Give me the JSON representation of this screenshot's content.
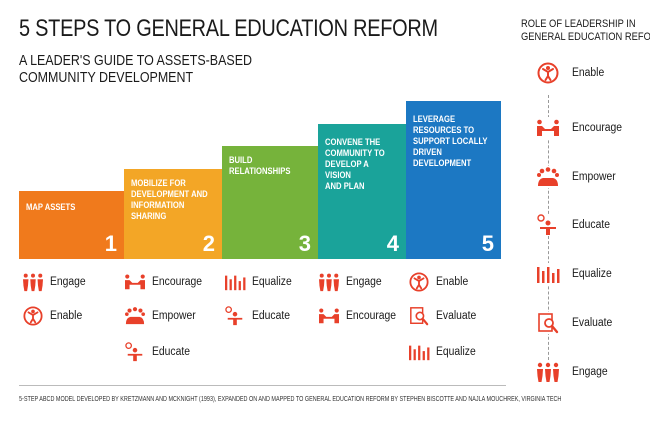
{
  "title": "5 STEPS TO GENERAL EDUCATION REFORM",
  "subtitle_line1": "A LEADER'S GUIDE TO ASSETS-BASED",
  "subtitle_line2": "COMMUNITY DEVELOPMENT",
  "steps": [
    {
      "label": "MAP ASSETS",
      "number": "1",
      "color": "#f07a1c"
    },
    {
      "label": "MOBILIZE FOR\nDEVELOPMENT AND\nINFORMATION SHARING",
      "number": "2",
      "color": "#f3a626"
    },
    {
      "label": "BUILD\nRELATIONSHIPS",
      "number": "3",
      "color": "#76b33b"
    },
    {
      "label": "CONVENE THE\nCOMMUNITY TO\nDEVELOP A VISION\nAND PLAN",
      "number": "4",
      "color": "#1aa39a"
    },
    {
      "label": "LEVERAGE\nRESOURCES TO\nSUPPORT LOCALLY\nDRIVEN DEVELOPMENT",
      "number": "5",
      "color": "#1c78c3"
    }
  ],
  "step_actions": {
    "step1": [
      "Engage",
      "Enable"
    ],
    "step2": [
      "Encourage",
      "Empower",
      "Educate"
    ],
    "step3": [
      "Equalize",
      "Educate"
    ],
    "step4": [
      "Engage",
      "Encourage"
    ],
    "step5": [
      "Enable",
      "Evaluate",
      "Equalize"
    ]
  },
  "icons": {
    "engage": "people-group-icon",
    "enable": "person-raised-arms-icon",
    "encourage": "handshake-icon",
    "empower": "group-huddle-icon",
    "educate": "teacher-icon",
    "equalize": "bar-levels-icon",
    "evaluate": "magnifier-document-icon"
  },
  "sidebar": {
    "title_line1": "ROLE OF LEADERSHIP IN",
    "title_line2": "GENERAL EDUCATION REFORM",
    "items": [
      "Enable",
      "Encourage",
      "Empower",
      "Educate",
      "Equalize",
      "Evaluate",
      "Engage"
    ]
  },
  "footer": "5-STEP ABCD MODEL DEVELOPED BY KRETZMANN AND MCKNIGHT (1993), EXPANDED ON AND MAPPED TO GENERAL EDUCATION REFORM BY STEPHEN BISCOTTE AND NAJLA MOUCHREK, VIRGINIA TECH",
  "colors": {
    "icon": "#e8402a",
    "step1": "#f07a1c",
    "step2": "#f3a626",
    "step3": "#76b33b",
    "step4": "#1aa39a",
    "step5": "#1c78c3"
  }
}
